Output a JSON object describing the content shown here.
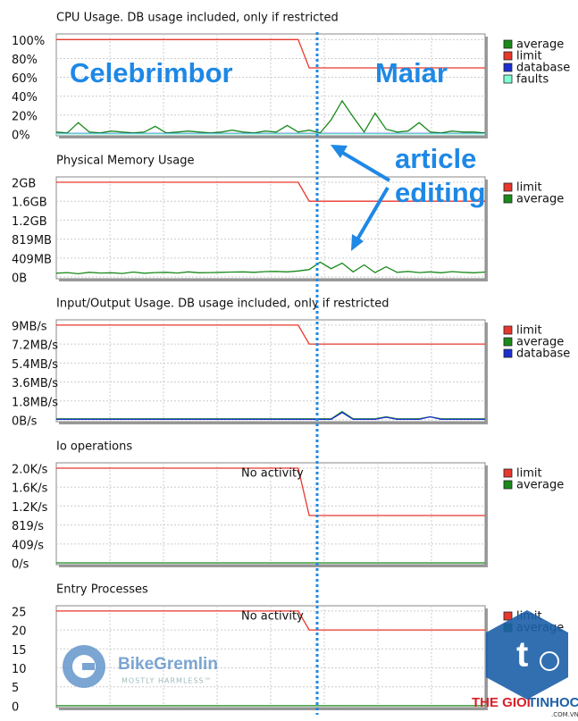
{
  "chart_data": [
    {
      "type": "line",
      "title": "CPU Usage. DB usage included, only if restricted",
      "ylim": [
        -2,
        106
      ],
      "yticks": [
        {
          "value": 0,
          "label": "0%"
        },
        {
          "value": 20,
          "label": "20%"
        },
        {
          "value": 40,
          "label": "40%"
        },
        {
          "value": 60,
          "label": "60%"
        },
        {
          "value": 80,
          "label": "80%"
        },
        {
          "value": 100,
          "label": "100%"
        }
      ],
      "grid": true,
      "legend": "right",
      "series": [
        {
          "name": "average",
          "color": "#1a8a1a",
          "values": [
            2,
            1,
            12,
            2,
            1,
            3,
            2,
            1,
            2,
            8,
            1,
            2,
            3,
            2,
            1,
            2,
            4,
            2,
            1,
            3,
            2,
            9,
            2,
            4,
            1,
            15,
            35,
            18,
            2,
            22,
            5,
            2,
            3,
            12,
            2,
            1,
            3,
            2,
            2,
            1
          ]
        },
        {
          "name": "limit",
          "color": "#e8372c",
          "values": [
            100,
            100,
            100,
            100,
            100,
            100,
            100,
            100,
            100,
            100,
            100,
            100,
            100,
            100,
            100,
            100,
            100,
            100,
            100,
            100,
            100,
            100,
            100,
            70,
            70,
            70,
            70,
            70,
            70,
            70,
            70,
            70,
            70,
            70,
            70,
            70,
            70,
            70,
            70,
            70
          ]
        },
        {
          "name": "database",
          "color": "#1d2fd0",
          "values": [
            0.5,
            0.5,
            0.5,
            0.5,
            0.5,
            0.5,
            0.5,
            0.5,
            0.5,
            0.5,
            0.5,
            0.5,
            0.5,
            0.5,
            0.5,
            0.5,
            0.5,
            0.5,
            0.5,
            0.5,
            0.5,
            0.5,
            0.5,
            0.5,
            0.5,
            0.5,
            0.5,
            0.5,
            0.5,
            0.5,
            0.5,
            0.5,
            0.5,
            0.5,
            0.5,
            0.5,
            0.5,
            0.5,
            0.5,
            0.5
          ]
        },
        {
          "name": "faults",
          "color": "#7fffd4",
          "values": [
            0,
            0,
            0,
            0,
            0,
            0,
            0,
            0,
            0,
            0,
            0,
            0,
            0,
            0,
            0,
            0,
            0,
            0,
            0,
            0,
            0,
            0,
            0,
            0,
            0,
            0,
            0,
            0,
            0,
            0,
            0,
            0,
            0,
            0,
            0,
            0,
            0,
            0,
            0,
            0
          ]
        }
      ]
    },
    {
      "type": "line",
      "title": "Physical Memory Usage",
      "ylim": [
        -39,
        2164
      ],
      "yticks": [
        {
          "value": 0,
          "label": "0B"
        },
        {
          "value": 409,
          "label": "409MB"
        },
        {
          "value": 819,
          "label": "819MB"
        },
        {
          "value": 1228,
          "label": "1.2GB"
        },
        {
          "value": 1638,
          "label": "1.6GB"
        },
        {
          "value": 2048,
          "label": "2GB"
        }
      ],
      "grid": true,
      "legend": "right",
      "series": [
        {
          "name": "limit",
          "color": "#e8372c",
          "values": [
            2048,
            2048,
            2048,
            2048,
            2048,
            2048,
            2048,
            2048,
            2048,
            2048,
            2048,
            2048,
            2048,
            2048,
            2048,
            2048,
            2048,
            2048,
            2048,
            2048,
            2048,
            2048,
            2048,
            1638,
            1638,
            1638,
            1638,
            1638,
            1638,
            1638,
            1638,
            1638,
            1638,
            1638,
            1638,
            1638,
            1638,
            1638,
            1638,
            1638
          ]
        },
        {
          "name": "average",
          "color": "#1a8a1a",
          "values": [
            80,
            95,
            70,
            100,
            85,
            90,
            75,
            105,
            80,
            95,
            100,
            85,
            110,
            90,
            95,
            100,
            105,
            110,
            100,
            115,
            120,
            110,
            130,
            160,
            320,
            180,
            300,
            110,
            260,
            95,
            220,
            100,
            120,
            95,
            110,
            90,
            115,
            100,
            90,
            105
          ]
        }
      ]
    },
    {
      "type": "line",
      "title": "Input/Output Usage. DB usage included, only if restricted",
      "ylim": [
        -0.17,
        9.5
      ],
      "yticks": [
        {
          "value": 0,
          "label": "0B/s"
        },
        {
          "value": 1.8,
          "label": "1.8MB/s"
        },
        {
          "value": 3.6,
          "label": "3.6MB/s"
        },
        {
          "value": 5.4,
          "label": "5.4MB/s"
        },
        {
          "value": 7.2,
          "label": "7.2MB/s"
        },
        {
          "value": 9,
          "label": "9MB/s"
        }
      ],
      "grid": true,
      "legend": "right",
      "series": [
        {
          "name": "limit",
          "color": "#e8372c",
          "values": [
            9,
            9,
            9,
            9,
            9,
            9,
            9,
            9,
            9,
            9,
            9,
            9,
            9,
            9,
            9,
            9,
            9,
            9,
            9,
            9,
            9,
            9,
            9,
            7.2,
            7.2,
            7.2,
            7.2,
            7.2,
            7.2,
            7.2,
            7.2,
            7.2,
            7.2,
            7.2,
            7.2,
            7.2,
            7.2,
            7.2,
            7.2,
            7.2
          ]
        },
        {
          "name": "average",
          "color": "#1a8a1a",
          "values": [
            0.1,
            0.1,
            0.1,
            0.1,
            0.1,
            0.1,
            0.1,
            0.1,
            0.1,
            0.1,
            0.1,
            0.1,
            0.1,
            0.1,
            0.1,
            0.1,
            0.1,
            0.1,
            0.1,
            0.1,
            0.1,
            0.1,
            0.1,
            0.1,
            0.1,
            0.1,
            0.8,
            0.1,
            0.1,
            0.1,
            0.3,
            0.1,
            0.1,
            0.1,
            0.3,
            0.1,
            0.1,
            0.1,
            0.1,
            0.1
          ]
        },
        {
          "name": "database",
          "color": "#1d2fd0",
          "values": [
            0.05,
            0.05,
            0.05,
            0.05,
            0.05,
            0.05,
            0.05,
            0.05,
            0.05,
            0.05,
            0.05,
            0.05,
            0.05,
            0.05,
            0.05,
            0.05,
            0.05,
            0.05,
            0.05,
            0.05,
            0.05,
            0.05,
            0.05,
            0.05,
            0.05,
            0.05,
            0.7,
            0.05,
            0.05,
            0.05,
            0.25,
            0.05,
            0.05,
            0.05,
            0.3,
            0.05,
            0.05,
            0.05,
            0.05,
            0.05
          ]
        }
      ]
    },
    {
      "type": "line",
      "title": "Io operations",
      "annotation": "No activity",
      "ylim": [
        -39,
        2164
      ],
      "yticks": [
        {
          "value": 0,
          "label": "0/s"
        },
        {
          "value": 409,
          "label": "409/s"
        },
        {
          "value": 819,
          "label": "819/s"
        },
        {
          "value": 1228,
          "label": "1.2K/s"
        },
        {
          "value": 1638,
          "label": "1.6K/s"
        },
        {
          "value": 2048,
          "label": "2.0K/s"
        }
      ],
      "grid": true,
      "legend": "right",
      "series": [
        {
          "name": "limit",
          "color": "#e8372c",
          "values": [
            2048,
            2048,
            2048,
            2048,
            2048,
            2048,
            2048,
            2048,
            2048,
            2048,
            2048,
            2048,
            2048,
            2048,
            2048,
            2048,
            2048,
            2048,
            2048,
            2048,
            2048,
            2048,
            2048,
            1024,
            1024,
            1024,
            1024,
            1024,
            1024,
            1024,
            1024,
            1024,
            1024,
            1024,
            1024,
            1024,
            1024,
            1024,
            1024,
            1024
          ]
        },
        {
          "name": "average",
          "color": "#1a8a1a",
          "values": [
            0,
            0,
            0,
            0,
            0,
            0,
            0,
            0,
            0,
            0,
            0,
            0,
            0,
            0,
            0,
            0,
            0,
            0,
            0,
            0,
            0,
            0,
            0,
            0,
            0,
            0,
            0,
            0,
            0,
            0,
            0,
            0,
            0,
            0,
            0,
            0,
            0,
            0,
            0,
            0
          ]
        }
      ]
    },
    {
      "type": "line",
      "title": "Entry Processes",
      "annotation": "No activity",
      "ylim": [
        -0.5,
        26.4
      ],
      "yticks": [
        0,
        5,
        10,
        15,
        20,
        25
      ],
      "grid": true,
      "legend": "right",
      "series": [
        {
          "name": "limit",
          "color": "#e8372c",
          "values": [
            25,
            25,
            25,
            25,
            25,
            25,
            25,
            25,
            25,
            25,
            25,
            25,
            25,
            25,
            25,
            25,
            25,
            25,
            25,
            25,
            25,
            25,
            25,
            20,
            20,
            20,
            20,
            20,
            20,
            20,
            20,
            20,
            20,
            20,
            20,
            20,
            20,
            20,
            20,
            20
          ]
        },
        {
          "name": "average",
          "color": "#1a8a1a",
          "values": [
            0,
            0,
            0,
            0,
            0,
            0,
            0,
            0,
            0,
            0,
            0,
            0,
            0,
            0,
            0,
            0,
            0,
            0,
            0,
            0,
            0,
            0,
            0,
            0,
            0,
            0,
            0,
            0,
            0,
            0,
            0,
            0,
            0,
            0,
            0,
            0,
            0,
            0,
            0,
            0
          ]
        }
      ]
    }
  ],
  "annotations": {
    "left_server": "Celebrimbor",
    "right_server": "Maiar",
    "callout_line_1": "article",
    "callout_line_2": "editing"
  },
  "watermarks": {
    "left_brand": "BikeGremlin",
    "left_tagline": "MOSTLY HARMLESS™",
    "right_brand_1": "THE GIOI",
    "right_brand_2": "TINHOC",
    "right_domain": ".COM.VN"
  }
}
